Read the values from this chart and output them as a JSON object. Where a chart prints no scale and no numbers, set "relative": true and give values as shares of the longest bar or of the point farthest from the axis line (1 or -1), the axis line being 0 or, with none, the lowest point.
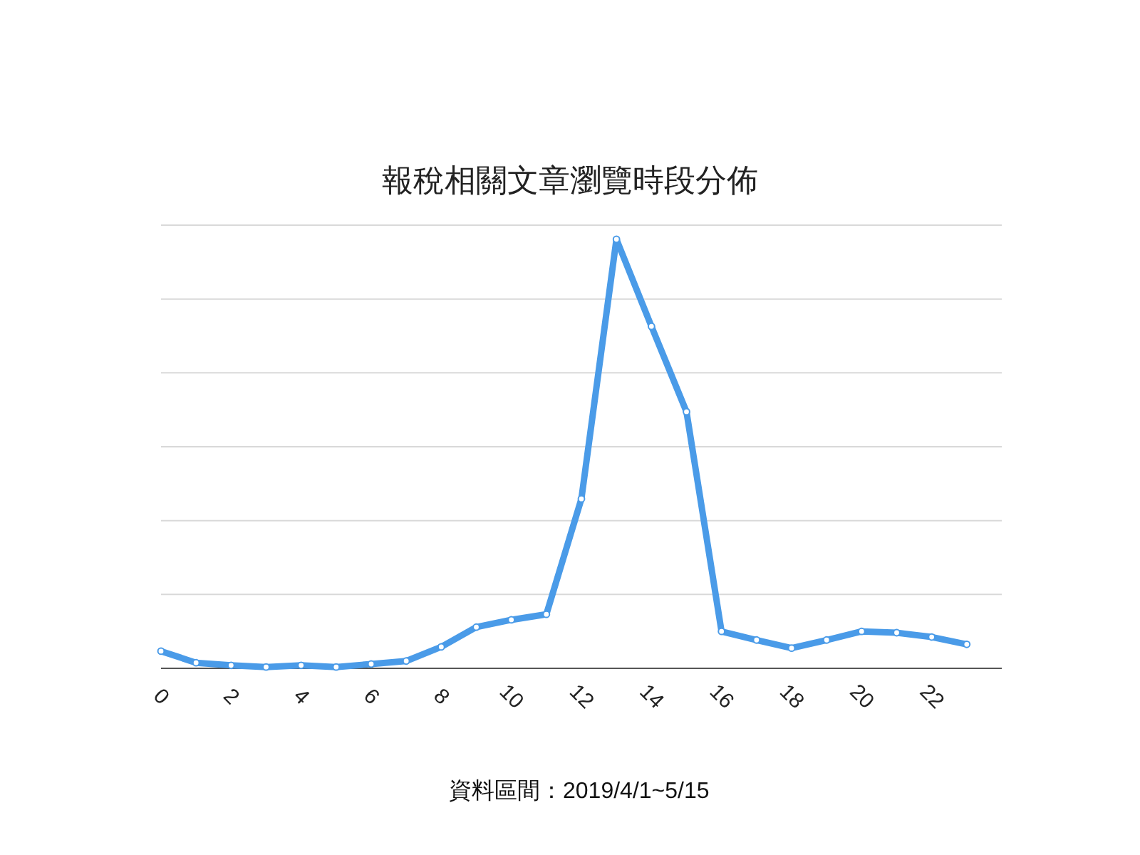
{
  "chart_data": {
    "type": "line",
    "title": "報稅相關文章瀏覽時段分佈",
    "relative": true,
    "x": [
      0,
      1,
      2,
      3,
      4,
      5,
      6,
      7,
      8,
      9,
      10,
      11,
      12,
      13,
      14,
      15,
      16,
      17,
      18,
      19,
      20,
      21,
      22,
      23
    ],
    "series": [
      {
        "color": "#4a9be8",
        "values": [
          0.04,
          0.013,
          0.007,
          0.003,
          0.007,
          0.003,
          0.01,
          0.017,
          0.05,
          0.096,
          0.113,
          0.126,
          0.395,
          1,
          0.797,
          0.598,
          0.086,
          0.066,
          0.047,
          0.066,
          0.086,
          0.083,
          0.073,
          0.056
        ]
      }
    ],
    "xlim": [
      0,
      24
    ],
    "xticks": [
      0,
      2,
      4,
      6,
      8,
      10,
      12,
      14,
      16,
      18,
      20,
      22
    ],
    "grid": "y",
    "marker": "circle",
    "line_style": "solid",
    "annotations": [
      "資料區間：2019/4/1~5/15"
    ]
  }
}
